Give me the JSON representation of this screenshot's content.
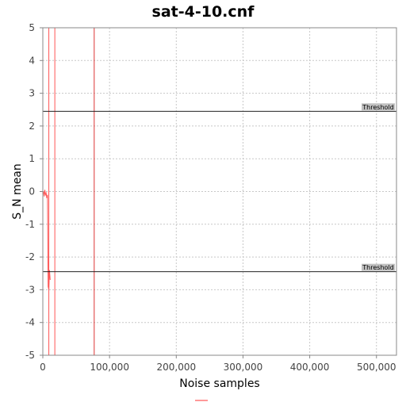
{
  "chart_data": {
    "type": "line",
    "title": "sat-4-10.cnf",
    "xlabel": "Noise samples",
    "ylabel": "S_N mean",
    "xlim": [
      0,
      530000
    ],
    "ylim": [
      -5,
      5
    ],
    "xticks": [
      0,
      100000,
      200000,
      300000,
      400000,
      500000
    ],
    "xtick_labels": [
      "0",
      "100,000",
      "200,000",
      "300,000",
      "400,000",
      "500,000"
    ],
    "yticks": [
      -5,
      -4,
      -3,
      -2,
      -1,
      0,
      1,
      2,
      3,
      4,
      5
    ],
    "ytick_labels": [
      "-5",
      "-4",
      "-3",
      "-2",
      "-1",
      "0",
      "1",
      "2",
      "3",
      "4",
      "5"
    ],
    "grid": true,
    "series": [
      {
        "color": "#ff5555",
        "x": [
          1000,
          2000,
          3000,
          4000,
          5000,
          6000,
          7000,
          8000,
          9000,
          10000,
          11000
        ],
        "y": [
          0.0,
          -0.15,
          0.05,
          -0.1,
          -0.05,
          -0.2,
          -0.1,
          -2.9,
          -3.0,
          -2.4,
          -2.7
        ]
      }
    ],
    "hlines": [
      {
        "y": 2.45,
        "label": "Threshold",
        "color": "#222222"
      },
      {
        "y": -2.45,
        "label": "Threshold",
        "color": "#222222"
      }
    ],
    "vlines": [
      {
        "x": 9000,
        "color": "#ff5555"
      },
      {
        "x": 18000,
        "color": "#ff5555"
      },
      {
        "x": 77000,
        "color": "#dd3333"
      }
    ],
    "legend": {
      "position": "bottom",
      "entries": [
        {
          "color": "#ff9999"
        }
      ]
    }
  },
  "colors": {
    "grid": "#c8c8c8",
    "series": "#ff5555",
    "threshold": "#222222",
    "threshold_label_bg": "#c0c0c0"
  }
}
